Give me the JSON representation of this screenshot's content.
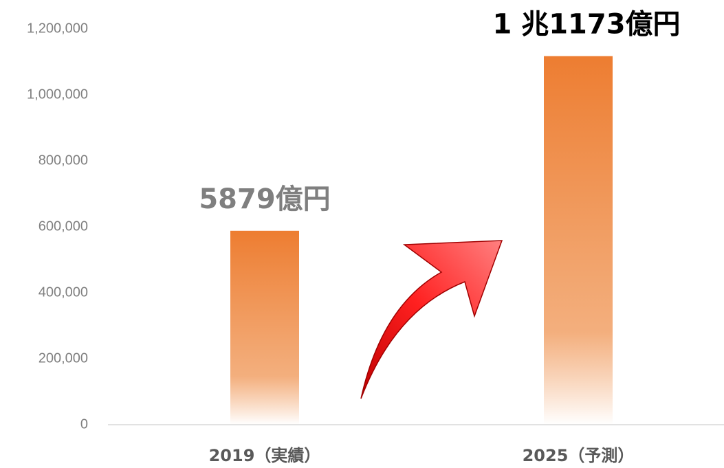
{
  "chart_data": {
    "type": "bar",
    "categories": [
      "2019（実績）",
      "2025（予測）"
    ],
    "values": [
      587900,
      1117300
    ],
    "value_labels": [
      "5879億円",
      "1 兆1173億円"
    ],
    "value_label_colors": [
      "#7f7f7f",
      "#000000"
    ],
    "color": "#ed7d31",
    "ylim": [
      0,
      1200000
    ],
    "yticks": [
      0,
      {
        "value": 200000,
        "label": "200,000"
      },
      {
        "value": 400000,
        "label": "400,000"
      },
      {
        "value": 600000,
        "label": "600,000"
      },
      {
        "value": 800000,
        "label": "800,000"
      },
      {
        "value": 1000000,
        "label": "1,000,000"
      },
      {
        "value": 1200000,
        "label": "1,200,000"
      }
    ],
    "grid": false
  }
}
